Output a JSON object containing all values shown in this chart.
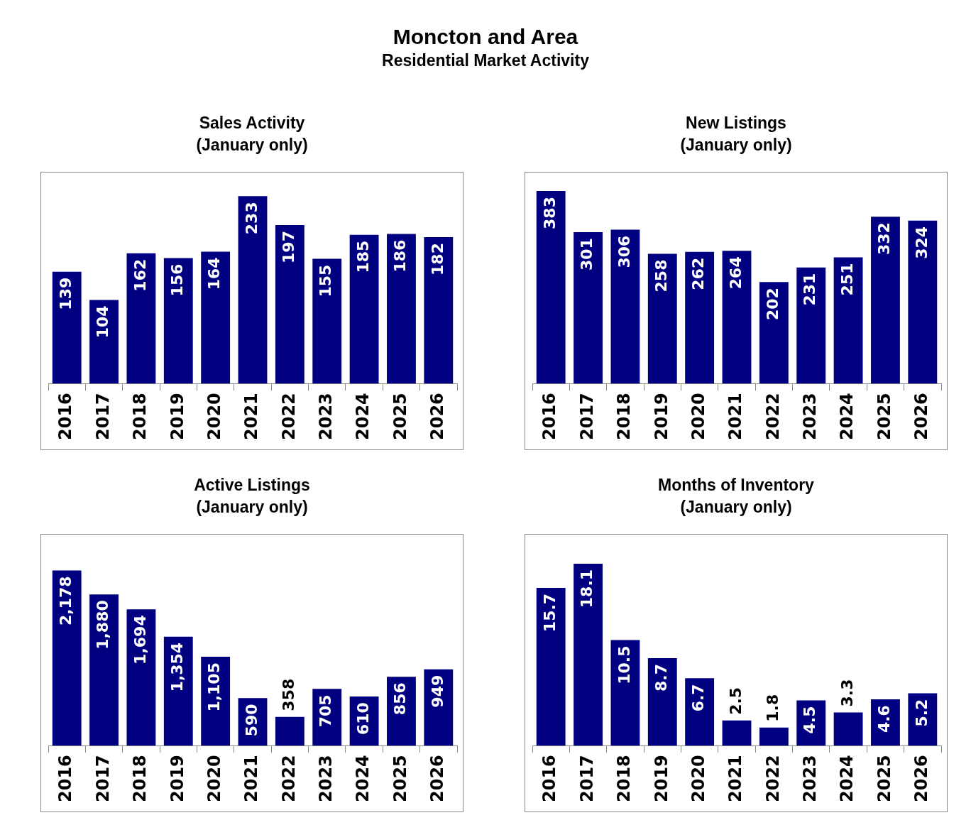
{
  "chart_data": [
    {
      "type": "other",
      "title": "Moncton and Area",
      "subtitle": "Residential Market Activity"
    },
    {
      "type": "bar",
      "title": "Sales Activity",
      "subtitle": "(January only)",
      "categories": [
        "2016",
        "2017",
        "2018",
        "2019",
        "2020",
        "2021",
        "2022",
        "2023",
        "2024",
        "2025",
        "2026"
      ],
      "values": [
        139,
        104,
        162,
        156,
        164,
        233,
        197,
        155,
        185,
        186,
        182
      ],
      "color": "#000080",
      "data_labels": true,
      "tick_labels": "x",
      "grid": false
    },
    {
      "type": "bar",
      "title": "New Listings",
      "subtitle": "(January only)",
      "categories": [
        "2016",
        "2017",
        "2018",
        "2019",
        "2020",
        "2021",
        "2022",
        "2023",
        "2024",
        "2025",
        "2026"
      ],
      "values": [
        383,
        301,
        306,
        258,
        262,
        264,
        202,
        231,
        251,
        332,
        324
      ],
      "color": "#000080",
      "data_labels": true,
      "tick_labels": "x",
      "grid": false
    },
    {
      "type": "bar",
      "title": "Active Listings",
      "subtitle": "(January only)",
      "categories": [
        "2016",
        "2017",
        "2018",
        "2019",
        "2020",
        "2021",
        "2022",
        "2023",
        "2024",
        "2025",
        "2026"
      ],
      "values": [
        2178,
        1880,
        1694,
        1354,
        1105,
        590,
        358,
        705,
        610,
        856,
        949
      ],
      "value_labels": [
        "2,178",
        "1,880",
        "1,694",
        "1,354",
        "1,105",
        "590",
        "358",
        "705",
        "610",
        "856",
        "949"
      ],
      "color": "#000080",
      "tick_labels": "x",
      "grid": false
    },
    {
      "type": "bar",
      "title": "Months of Inventory",
      "subtitle": "(January only)",
      "categories": [
        "2016",
        "2017",
        "2018",
        "2019",
        "2020",
        "2021",
        "2022",
        "2023",
        "2024",
        "2025",
        "2026"
      ],
      "values": [
        15.7,
        18.1,
        10.5,
        8.7,
        6.7,
        2.5,
        1.8,
        4.5,
        3.3,
        4.6,
        5.2
      ],
      "color": "#000080",
      "data_labels": true,
      "tick_labels": "x",
      "grid": false
    }
  ]
}
